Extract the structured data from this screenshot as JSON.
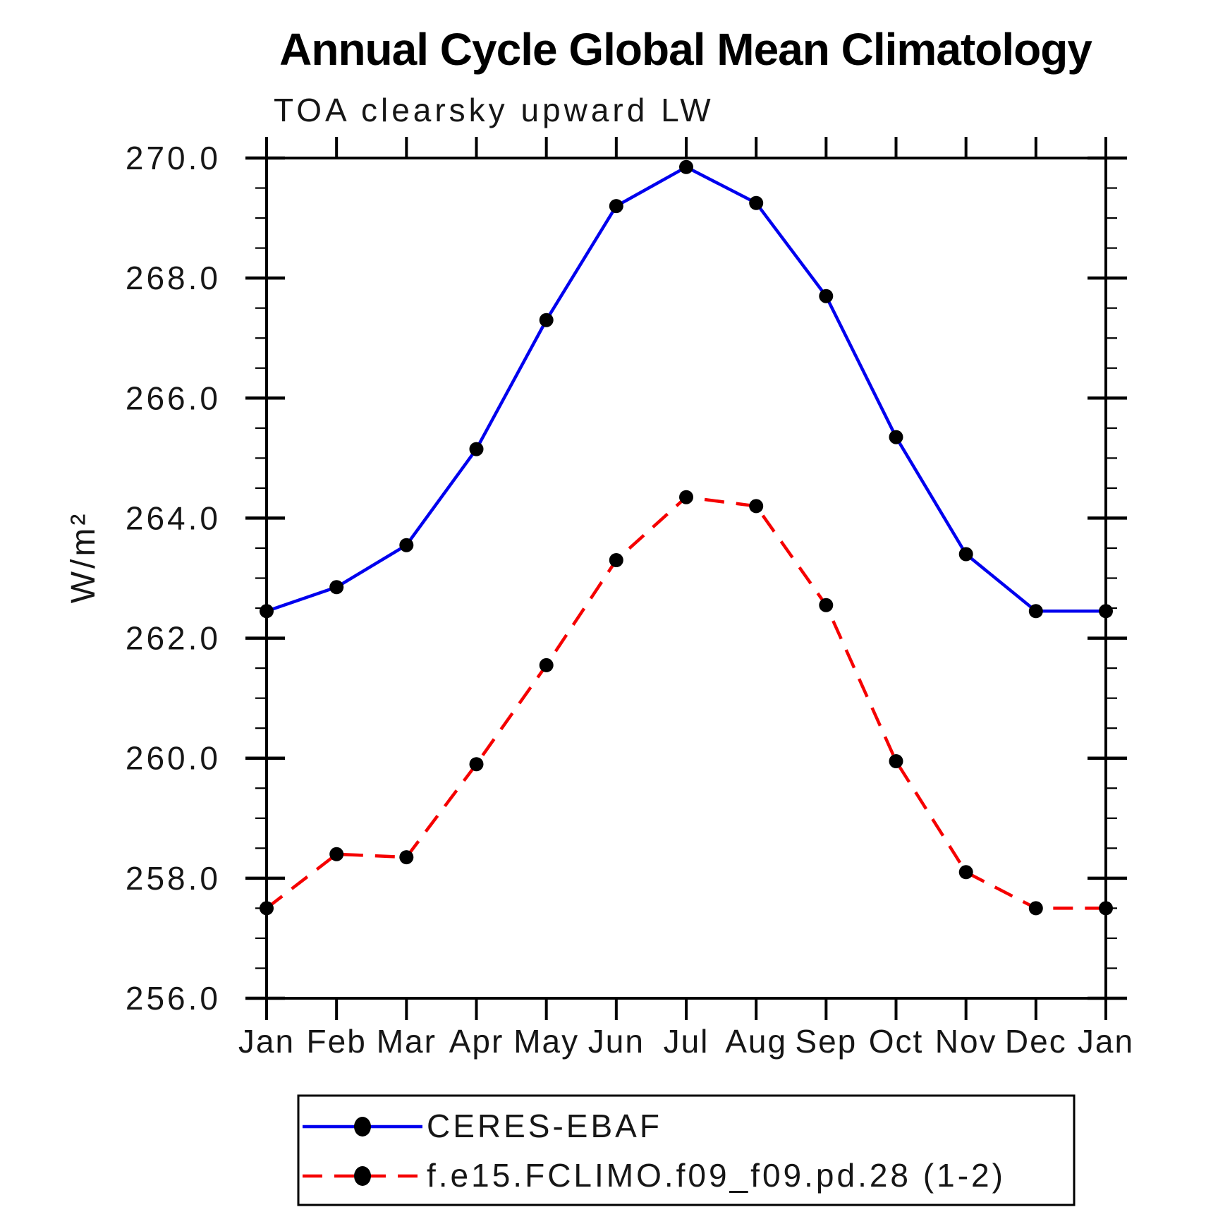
{
  "page": {
    "background": "#ffffff"
  },
  "chart_data": {
    "type": "line",
    "title": "Annual Cycle Global Mean Climatology",
    "subtitle": "TOA clearsky upward LW",
    "ylabel": "W/m²",
    "xlabel": "",
    "categories": [
      "Jan",
      "Feb",
      "Mar",
      "Apr",
      "May",
      "Jun",
      "Jul",
      "Aug",
      "Sep",
      "Oct",
      "Nov",
      "Dec",
      "Jan"
    ],
    "series": [
      {
        "name": "CERES-EBAF",
        "color": "#0000ee",
        "line_style": "solid",
        "marker": "filled-circle",
        "marker_color": "#000000",
        "values": [
          262.45,
          262.85,
          263.55,
          265.15,
          267.3,
          269.2,
          269.85,
          269.25,
          267.7,
          265.35,
          263.4,
          262.45,
          262.45
        ]
      },
      {
        "name": "f.e15.FCLIMO.f09_f09.pd.28 (1-2)",
        "color": "#f50000",
        "line_style": "dashed",
        "marker": "filled-circle",
        "marker_color": "#000000",
        "values": [
          257.5,
          258.4,
          258.35,
          259.9,
          261.55,
          263.3,
          264.35,
          264.2,
          262.55,
          259.95,
          258.1,
          257.5,
          257.5
        ]
      }
    ],
    "ylim": [
      256,
      270
    ],
    "ytick_step": 2,
    "yminor_step": 0.5,
    "yticks": [
      {
        "value": 256,
        "label": "256.0"
      },
      {
        "value": 258,
        "label": "258.0"
      },
      {
        "value": 260,
        "label": "260.0"
      },
      {
        "value": 262,
        "label": "262.0"
      },
      {
        "value": 264,
        "label": "264.0"
      },
      {
        "value": 266,
        "label": "266.0"
      },
      {
        "value": 268,
        "label": "268.0"
      },
      {
        "value": 270,
        "label": "270.0"
      }
    ],
    "grid": false,
    "legend_position": "bottom-left-box",
    "axis_color": "#000000"
  }
}
